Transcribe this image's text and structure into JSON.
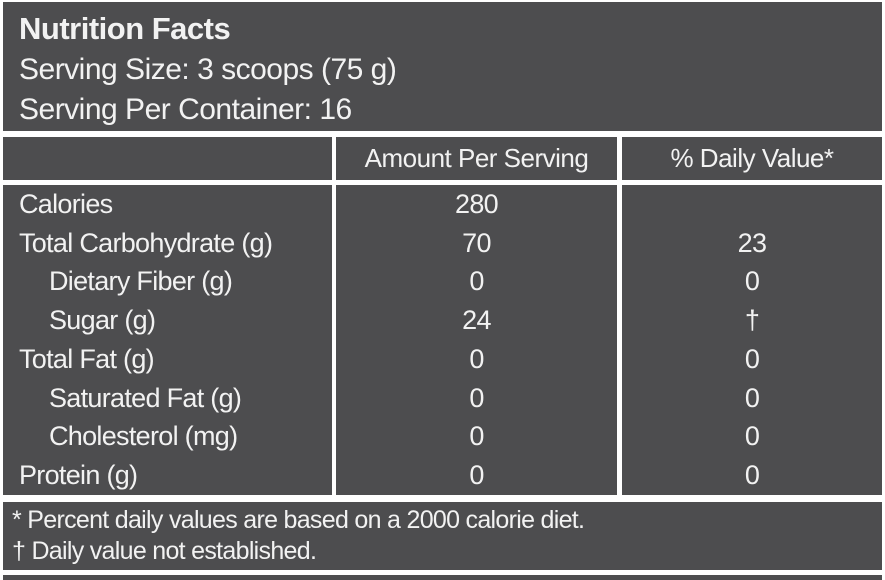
{
  "header": {
    "title": "Nutrition Facts",
    "serving_size": "Serving Size: 3 scoops (75 g)",
    "servings_per_container": "Serving Per Container: 16"
  },
  "table": {
    "columns": [
      "",
      "Amount Per Serving",
      "% Daily Value*"
    ],
    "rows": [
      {
        "label": "Calories",
        "amount": "280",
        "daily_value": ""
      },
      {
        "label": "Total Carbohydrate (g)",
        "amount": "70",
        "daily_value": "23"
      },
      {
        "label": "Dietary Fiber (g)",
        "amount": "0",
        "daily_value": "0"
      },
      {
        "label": "Sugar (g)",
        "amount": "24",
        "daily_value": "†"
      },
      {
        "label": "Total Fat (g)",
        "amount": "0",
        "daily_value": "0"
      },
      {
        "label": "Saturated Fat (g)",
        "amount": "0",
        "daily_value": "0"
      },
      {
        "label": "Cholesterol (mg)",
        "amount": "0",
        "daily_value": "0"
      },
      {
        "label": "Protein (g)",
        "amount": "0",
        "daily_value": "0"
      }
    ]
  },
  "footnotes": {
    "percent_note": "* Percent daily values are based on a 2000 calorie diet.",
    "dagger_note": "† Daily value not established."
  },
  "colors": {
    "panel": "#4d4d4f",
    "text": "#f2f2f2",
    "gutter": "#ffffff"
  }
}
